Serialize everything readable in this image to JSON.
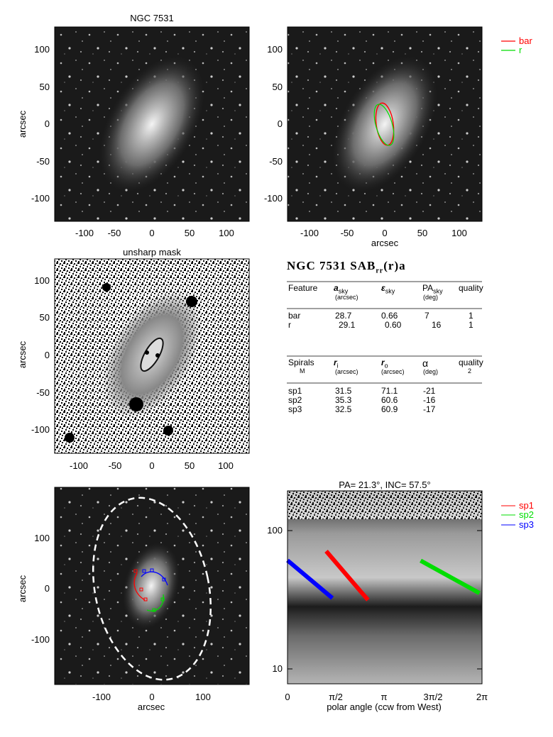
{
  "panel1": {
    "title": "NGC 7531",
    "ylabel": "arcsec",
    "xticks": [
      "-100",
      "-50",
      "0",
      "50",
      "100"
    ],
    "yticks": [
      "100",
      "50",
      "0",
      "-50",
      "-100"
    ]
  },
  "panel2": {
    "xlabel": "arcsec",
    "xticks": [
      "-100",
      "-50",
      "0",
      "50",
      "100"
    ],
    "yticks": [
      "100",
      "50",
      "0",
      "-50",
      "-100"
    ],
    "legend": [
      {
        "label": "bar",
        "color": "#ff0000"
      },
      {
        "label": "r",
        "color": "#00dd00"
      }
    ]
  },
  "panel3": {
    "title": "unsharp mask",
    "ylabel": "arcsec",
    "xticks": [
      "-100",
      "-50",
      "0",
      "50",
      "100"
    ],
    "yticks": [
      "100",
      "50",
      "0",
      "-50",
      "-100"
    ]
  },
  "table": {
    "heading": "NGC 7531  SAB",
    "heading_sub": "rr",
    "heading_tail": "(r)a",
    "feat_header": {
      "feature": "Feature",
      "a": "a",
      "a_sub": "sky",
      "a_unit": "(arcsec)",
      "eps": "ε",
      "eps_sub": "sky",
      "pa": "PA",
      "pa_sub": "sky",
      "pa_unit": "(deg)",
      "quality": "quality"
    },
    "features": [
      {
        "name": "bar",
        "a": "28.7",
        "eps": "0.66",
        "pa": "7",
        "q": "1"
      },
      {
        "name": "r",
        "a": "29.1",
        "eps": "0.60",
        "pa": "16",
        "q": "1"
      }
    ],
    "spiral_header": {
      "spirals": "Spirals",
      "m": "M",
      "ri": "r",
      "ri_sub": "i",
      "ri_unit": "(arcsec)",
      "ro": "r",
      "ro_sub": "o",
      "ro_unit": "(arcsec)",
      "alpha": "α",
      "alpha_unit": "(deg)",
      "quality": "quality",
      "quality_val": "2"
    },
    "spirals": [
      {
        "name": "sp1",
        "ri": "31.5",
        "ro": "71.1",
        "alpha": "-21"
      },
      {
        "name": "sp2",
        "ri": "35.3",
        "ro": "60.6",
        "alpha": "-16"
      },
      {
        "name": "sp3",
        "ri": "32.5",
        "ro": "60.9",
        "alpha": "-17"
      }
    ]
  },
  "panel5": {
    "xlabel": "arcsec",
    "ylabel": "arcsec",
    "xticks": [
      "-100",
      "0",
      "100"
    ],
    "yticks": [
      "100",
      "0",
      "-100"
    ]
  },
  "panel6": {
    "title": "PA= 21.3°, INC= 57.5°",
    "xlabel": "polar angle (ccw from West)",
    "xticks": [
      "0",
      "π/2",
      "π",
      "3π/2",
      "2π"
    ],
    "yticks": [
      "100",
      "10"
    ],
    "legend": [
      {
        "label": "sp1",
        "color": "#ff0000"
      },
      {
        "label": "sp2",
        "color": "#00dd00"
      },
      {
        "label": "sp3",
        "color": "#0000ff"
      }
    ]
  },
  "chart_data": {
    "type": "line",
    "title": "PA= 21.3°, INC= 57.5°",
    "xlabel": "polar angle (ccw from West)",
    "ylabel": "",
    "xlim": [
      0,
      6.2832
    ],
    "ylim": [
      8,
      200
    ],
    "yscale": "log",
    "series": [
      {
        "name": "sp1",
        "color": "#ff0000",
        "x": [
          1.25,
          2.6
        ],
        "y": [
          71,
          31.5
        ]
      },
      {
        "name": "sp2",
        "color": "#00dd00",
        "x": [
          4.3,
          6.2
        ],
        "y": [
          60.6,
          35.3
        ]
      },
      {
        "name": "sp3",
        "color": "#0000ff",
        "x": [
          0.0,
          1.45
        ],
        "y": [
          60.9,
          32.5
        ]
      }
    ]
  }
}
